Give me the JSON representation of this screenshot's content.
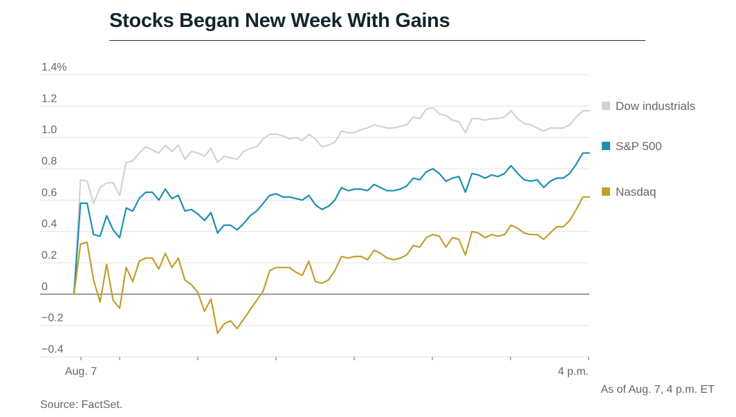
{
  "chart_data": {
    "type": "line",
    "title": "Stocks Began New Week With Gains",
    "x_tick_labels": [
      "Aug. 7",
      "4 p.m."
    ],
    "y_ticks": [
      {
        "v": 1.4,
        "label": "1.4%"
      },
      {
        "v": 1.2,
        "label": "1.2"
      },
      {
        "v": 1.0,
        "label": "1.0"
      },
      {
        "v": 0.8,
        "label": "0.8"
      },
      {
        "v": 0.6,
        "label": "0.6"
      },
      {
        "v": 0.4,
        "label": "0.4"
      },
      {
        "v": 0.2,
        "label": "0.2"
      },
      {
        "v": 0,
        "label": "0"
      },
      {
        "v": -0.2,
        "label": "−0.2"
      },
      {
        "v": -0.4,
        "label": "−0.4"
      }
    ],
    "ylim": [
      -0.4,
      1.4
    ],
    "grid": true,
    "legend_position": "right",
    "series": [
      {
        "name": "Dow industrials",
        "color": "#d0d3d6",
        "values": [
          0,
          0.73,
          0.72,
          0.58,
          0.68,
          0.71,
          0.71,
          0.63,
          0.84,
          0.85,
          0.9,
          0.94,
          0.92,
          0.9,
          0.95,
          0.91,
          0.95,
          0.86,
          0.91,
          0.9,
          0.88,
          0.93,
          0.84,
          0.88,
          0.87,
          0.86,
          0.91,
          0.93,
          0.94,
          0.99,
          1.02,
          1.02,
          1.01,
          0.99,
          1.0,
          0.98,
          1.02,
          0.99,
          0.94,
          0.95,
          0.97,
          1.04,
          1.03,
          1.03,
          1.05,
          1.06,
          1.08,
          1.07,
          1.06,
          1.06,
          1.07,
          1.08,
          1.13,
          1.12,
          1.18,
          1.19,
          1.15,
          1.14,
          1.11,
          1.1,
          1.03,
          1.12,
          1.12,
          1.11,
          1.12,
          1.12,
          1.13,
          1.17,
          1.12,
          1.09,
          1.08,
          1.06,
          1.04,
          1.06,
          1.06,
          1.06,
          1.08,
          1.13,
          1.17,
          1.17
        ]
      },
      {
        "name": "S&P 500",
        "color": "#1a8fb0",
        "values": [
          0,
          0.58,
          0.58,
          0.38,
          0.37,
          0.5,
          0.41,
          0.36,
          0.55,
          0.53,
          0.61,
          0.65,
          0.65,
          0.6,
          0.67,
          0.61,
          0.63,
          0.53,
          0.54,
          0.51,
          0.47,
          0.52,
          0.39,
          0.44,
          0.44,
          0.41,
          0.45,
          0.5,
          0.53,
          0.58,
          0.63,
          0.64,
          0.62,
          0.62,
          0.61,
          0.6,
          0.63,
          0.57,
          0.54,
          0.56,
          0.6,
          0.68,
          0.66,
          0.67,
          0.67,
          0.66,
          0.7,
          0.68,
          0.66,
          0.66,
          0.67,
          0.69,
          0.74,
          0.73,
          0.78,
          0.8,
          0.77,
          0.72,
          0.74,
          0.75,
          0.65,
          0.77,
          0.76,
          0.74,
          0.76,
          0.75,
          0.77,
          0.82,
          0.77,
          0.73,
          0.72,
          0.73,
          0.68,
          0.72,
          0.74,
          0.74,
          0.77,
          0.83,
          0.9,
          0.9
        ]
      },
      {
        "name": "Nasdaq",
        "color": "#c29e2b",
        "values": [
          0,
          0.32,
          0.33,
          0.09,
          -0.05,
          0.19,
          -0.04,
          -0.09,
          0.17,
          0.08,
          0.21,
          0.23,
          0.23,
          0.16,
          0.26,
          0.17,
          0.23,
          0.09,
          0.06,
          0.01,
          -0.11,
          -0.03,
          -0.25,
          -0.19,
          -0.17,
          -0.22,
          -0.16,
          -0.1,
          -0.04,
          0.02,
          0.15,
          0.17,
          0.17,
          0.17,
          0.14,
          0.12,
          0.21,
          0.08,
          0.07,
          0.09,
          0.15,
          0.24,
          0.23,
          0.24,
          0.24,
          0.22,
          0.28,
          0.26,
          0.23,
          0.22,
          0.23,
          0.25,
          0.31,
          0.3,
          0.36,
          0.38,
          0.37,
          0.3,
          0.36,
          0.35,
          0.25,
          0.4,
          0.39,
          0.36,
          0.38,
          0.37,
          0.38,
          0.44,
          0.42,
          0.39,
          0.38,
          0.38,
          0.35,
          0.39,
          0.43,
          0.43,
          0.47,
          0.54,
          0.62,
          0.62
        ]
      }
    ]
  },
  "notes": {
    "as_of": "As of Aug. 7, 4 p.m. ET",
    "source": "Source: FactSet."
  }
}
